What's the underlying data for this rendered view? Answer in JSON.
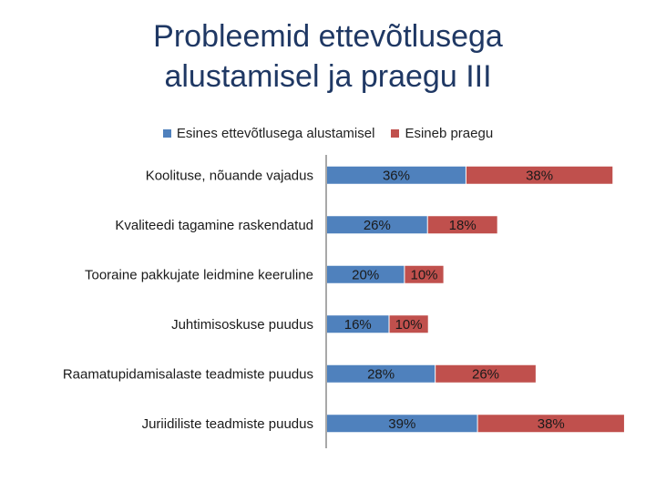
{
  "title": {
    "line1": "Probleemid ettevõtlusega",
    "line2": "alustamisel ja praegu III"
  },
  "colors": {
    "series1": "#4f81bd",
    "series2": "#c0504d",
    "title": "#1f3864"
  },
  "chart_data": {
    "type": "bar",
    "orientation": "horizontal",
    "stacked": true,
    "categories": [
      "Koolituse, nõuande vajadus",
      "Kvaliteedi tagamine raskendatud",
      "Tooraine pakkujate leidmine keeruline",
      "Juhtimisoskuse puudus",
      "Raamatupidamisalaste teadmiste puudus",
      "Juriidiliste teadmiste puudus"
    ],
    "series": [
      {
        "name": "Esines ettevõtlusega alustamisel",
        "values": [
          36,
          26,
          20,
          16,
          28,
          39
        ],
        "labels": [
          "36%",
          "26%",
          "20%",
          "16%",
          "28%",
          "39%"
        ]
      },
      {
        "name": "Esineb praegu",
        "values": [
          38,
          18,
          10,
          10,
          26,
          38
        ],
        "labels": [
          "38%",
          "18%",
          "10%",
          "10%",
          "26%",
          "38%"
        ]
      }
    ],
    "legend_position": "top",
    "grid": false
  }
}
